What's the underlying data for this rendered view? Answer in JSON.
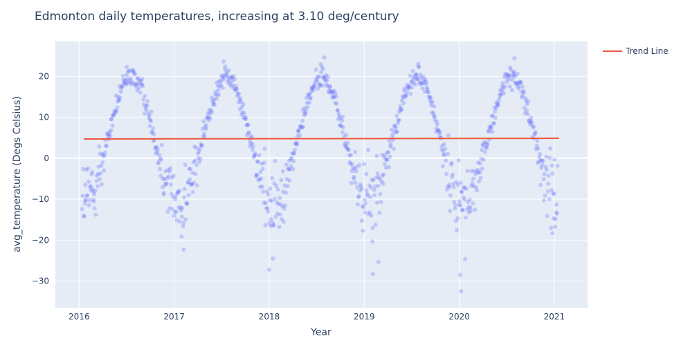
{
  "chart_data": {
    "type": "scatter",
    "title": "Edmonton daily temperatures, increasing at 3.10 deg/century",
    "xlabel": "Year",
    "ylabel": "avg_temperature (Degs Celsius)",
    "xlim": [
      2015.75,
      2021.35
    ],
    "ylim": [
      -36.5,
      28.5
    ],
    "x_ticks": [
      2016,
      2017,
      2018,
      2019,
      2020,
      2021
    ],
    "y_ticks": [
      -30,
      -20,
      -10,
      0,
      10,
      20
    ],
    "grid": true,
    "legend_position": "top-right",
    "series": [
      {
        "type": "scatter",
        "color": "#636efa",
        "opacity": 0.3,
        "seasonal_model": {
          "mean": 4.6,
          "amplitude": 15.2,
          "peak_phase": 0.55,
          "winter_extra_spread": 8.0,
          "summer_spread": 3.0
        },
        "points_per_year": 180,
        "x_range": [
          2016.03,
          2021.04
        ],
        "extremes": [
          {
            "x": 2020.02,
            "y": -32.5
          },
          {
            "x": 2020.01,
            "y": -28.5
          },
          {
            "x": 2018.0,
            "y": -27.2
          },
          {
            "x": 2019.09,
            "y": -28.3
          },
          {
            "x": 2019.15,
            "y": -25.3
          },
          {
            "x": 2018.04,
            "y": -24.5
          },
          {
            "x": 2016.5,
            "y": 22.3
          },
          {
            "x": 2017.52,
            "y": 23.6
          },
          {
            "x": 2018.58,
            "y": 24.6
          },
          {
            "x": 2019.57,
            "y": 22.4
          },
          {
            "x": 2020.58,
            "y": 24.4
          },
          {
            "x": 2016.06,
            "y": -10.3
          },
          {
            "x": 2016.15,
            "y": -10.1
          },
          {
            "x": 2017.1,
            "y": -22.3
          },
          {
            "x": 2020.98,
            "y": -18.3
          }
        ]
      },
      {
        "type": "line",
        "name": "Trend Line",
        "color": "#ef553b",
        "x": [
          2016.05,
          2021.05
        ],
        "y": [
          4.7,
          4.855
        ]
      }
    ]
  }
}
